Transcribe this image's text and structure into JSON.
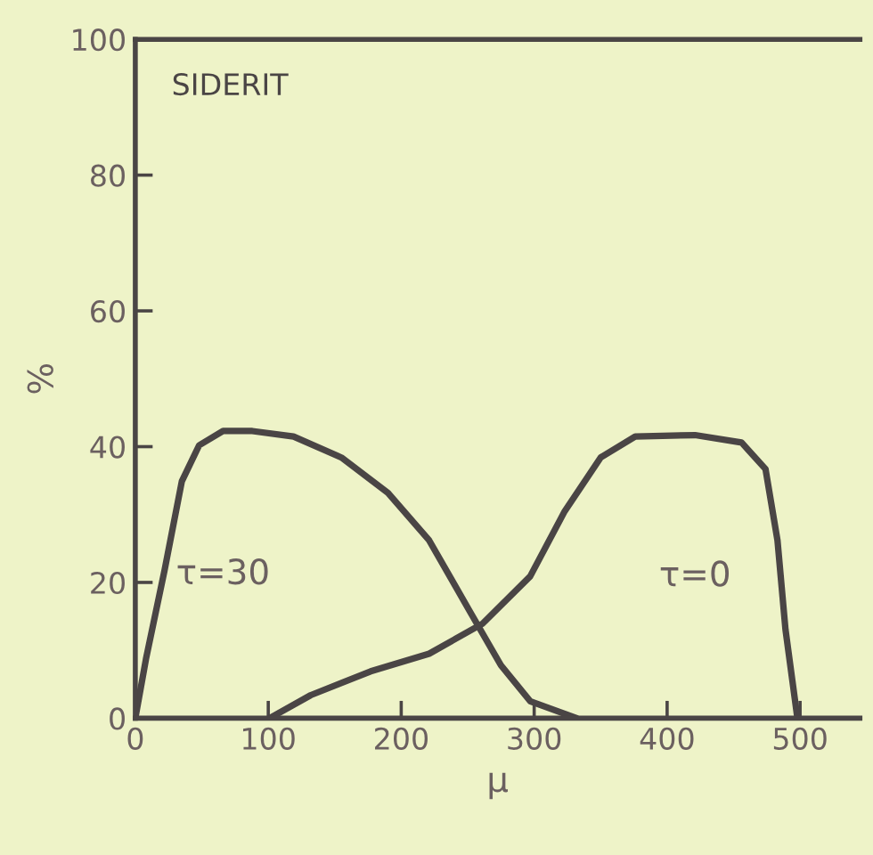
{
  "chart_data": {
    "type": "line",
    "title": "SIDERIT",
    "xlabel": "μ",
    "ylabel": "%",
    "xlim": [
      0,
      545
    ],
    "xticks": [
      0,
      100,
      200,
      300,
      400,
      500
    ],
    "ylim": [
      0,
      100
    ],
    "yticks": [
      0,
      20,
      40,
      60,
      80,
      100
    ],
    "grid": false,
    "marker": "none",
    "line_style": "solid",
    "series": [
      {
        "name": "τ=30",
        "color": "#4a4545",
        "x": [
          0,
          8,
          22,
          35,
          48,
          66,
          88,
          119,
          155,
          190,
          221,
          252,
          275,
          297,
          332
        ],
        "values": [
          0,
          8.7,
          21.8,
          34.9,
          40.2,
          42.3,
          42.3,
          41.5,
          38.4,
          33.2,
          26.2,
          15.6,
          7.8,
          2.5,
          0
        ]
      },
      {
        "name": "τ=0",
        "color": "#4a4545",
        "x": [
          101,
          132,
          177,
          221,
          261,
          297,
          323,
          350,
          376,
          421,
          456,
          474,
          483,
          489,
          498
        ],
        "values": [
          0,
          3.4,
          6.9,
          9.5,
          13.9,
          20.9,
          30.5,
          38.4,
          41.5,
          41.7,
          40.6,
          36.7,
          26.2,
          13.1,
          0
        ]
      }
    ]
  }
}
